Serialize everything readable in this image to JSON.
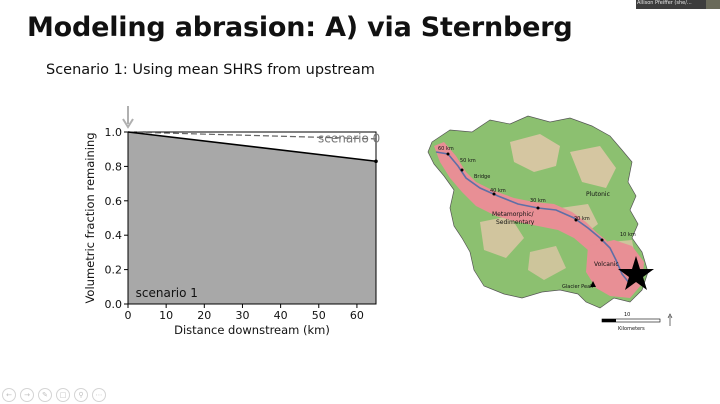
{
  "slide": {
    "title": "Modeling abrasion: A) via Sternberg",
    "subtitle": "Scenario 1: Using mean SHRS from upstream"
  },
  "video": {
    "participant_name": "Allison Pfeiffer (she/..."
  },
  "chart_data": {
    "type": "area",
    "xlabel": "Distance downstream (km)",
    "ylabel": "Volumetric fraction remaining",
    "xlim": [
      0,
      65
    ],
    "ylim": [
      0,
      1.0
    ],
    "x_ticks": [
      "0",
      "10",
      "20",
      "30",
      "40",
      "50",
      "60"
    ],
    "y_ticks": [
      "0.0",
      "0.2",
      "0.4",
      "0.6",
      "0.8",
      "1.0"
    ],
    "grid": false,
    "series": [
      {
        "name": "scenario 0",
        "style": "dashed",
        "x": [
          0,
          65
        ],
        "y": [
          1.0,
          0.96
        ]
      },
      {
        "name": "scenario 1",
        "style": "solid-filled",
        "x": [
          0,
          65
        ],
        "y": [
          1.0,
          0.83
        ]
      }
    ],
    "colors": {
      "fill": "#a8a8a8",
      "line": "#000000",
      "dashed": "#666666",
      "arrow": "#b0b0b0"
    }
  },
  "map": {
    "labels": {
      "km60": "60 km",
      "km50": "50 km",
      "bridge": "Bridge",
      "km40": "40 km",
      "km30": "30 km",
      "km20": "20 km",
      "km10": "10 km",
      "plutonic": "Plutonic",
      "meta1": "Metamorphic/",
      "meta2": "Sedimentary",
      "volcanic": "Volcanic",
      "glacier": "Glacier Peak",
      "scale_value": "10",
      "scale_unit": "Kilometers"
    },
    "colors": {
      "green": "#8cc070",
      "tan": "#ddc6a6",
      "pink": "#e88f95",
      "river": "#5f6fa6"
    }
  },
  "toolbar": {
    "icons": [
      "back-icon",
      "forward-icon",
      "pen-icon",
      "copy-icon",
      "search-icon",
      "more-icon"
    ]
  }
}
